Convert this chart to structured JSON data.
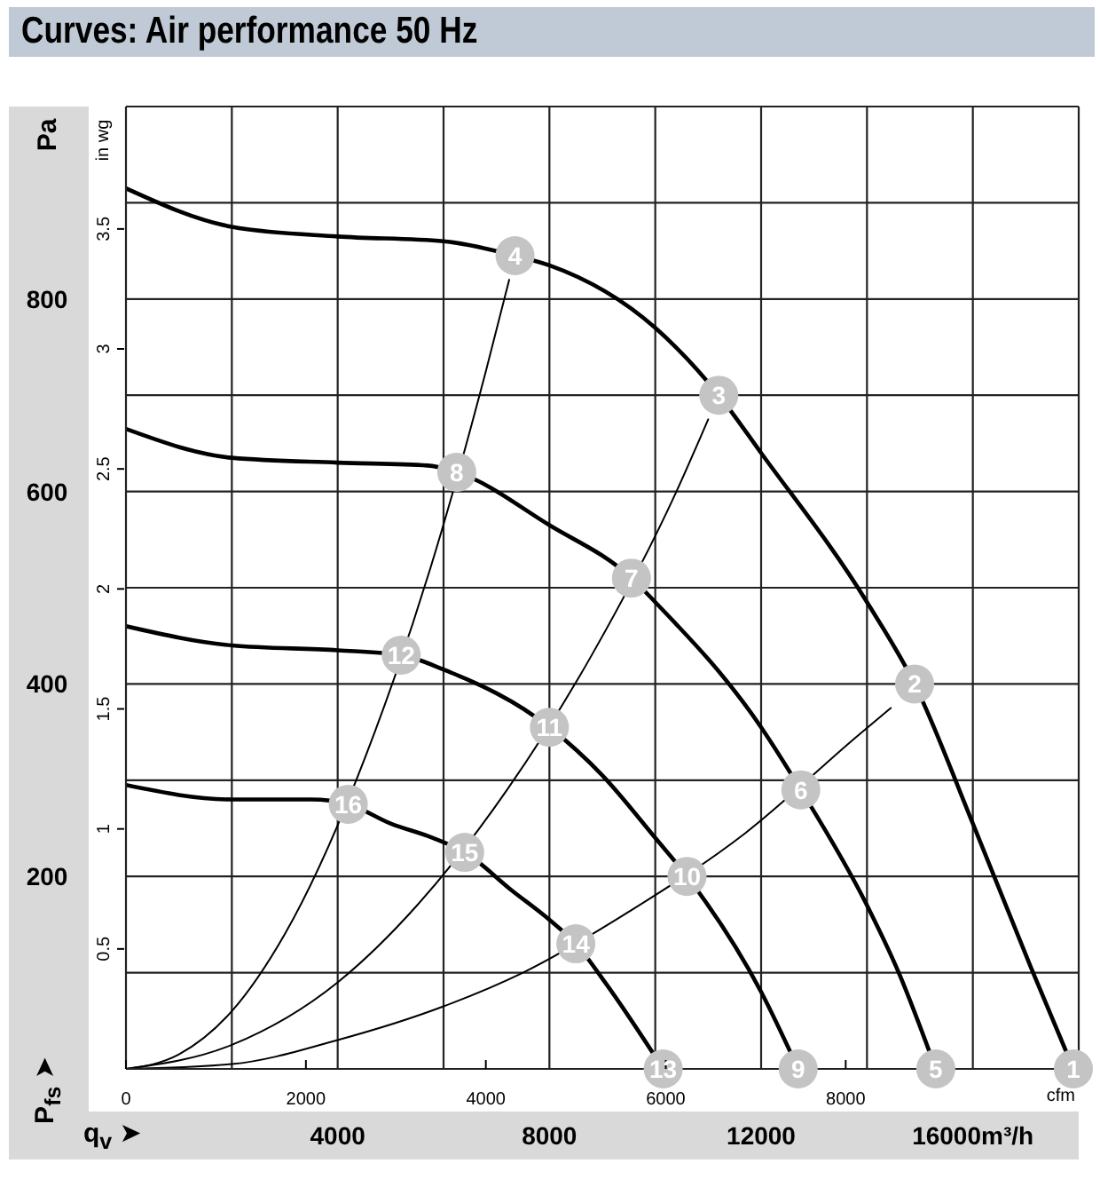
{
  "chart_data": {
    "type": "line",
    "title": "Curves: Air performance 50 Hz",
    "xlabel": "q$_{v}$ ➤",
    "ylabel": "P$_{fs}$ ➤",
    "y2label": "in wg",
    "x2label": "cfm",
    "annotations": [
      "Pa",
      {
        "text": "1",
        "x": 17900,
        "y": 0
      },
      {
        "text": "2",
        "x": 14900,
        "y": 400
      },
      {
        "text": "3",
        "x": 11200,
        "y": 700
      },
      {
        "text": "4",
        "x": 7350,
        "y": 845
      },
      {
        "text": "5",
        "x": 15300,
        "y": 0
      },
      {
        "text": "6",
        "x": 12750,
        "y": 290
      },
      {
        "text": "7",
        "x": 9550,
        "y": 510
      },
      {
        "text": "8",
        "x": 6250,
        "y": 620
      },
      {
        "text": "9",
        "x": 12700,
        "y": 0
      },
      {
        "text": "10",
        "x": 10600,
        "y": 200
      },
      {
        "text": "11",
        "x": 8000,
        "y": 355
      },
      {
        "text": "12",
        "x": 5200,
        "y": 430
      },
      {
        "text": "13",
        "x": 10150,
        "y": 0
      },
      {
        "text": "14",
        "x": 8500,
        "y": 130
      },
      {
        "text": "15",
        "x": 6400,
        "y": 225
      },
      {
        "text": "16",
        "x": 4200,
        "y": 275
      }
    ],
    "series": [
      {
        "color": "#000000",
        "x": [
          0,
          2000,
          4000,
          6000,
          7350,
          8000,
          10000,
          11200,
          12000,
          14000,
          14900,
          16000,
          17100,
          17900
        ],
        "values": [
          915,
          875,
          865,
          860,
          845,
          835,
          770,
          700,
          640,
          485,
          400,
          255,
          105,
          0
        ]
      },
      {
        "color": "#000000",
        "x": [
          0,
          2000,
          4000,
          5700,
          6250,
          8000,
          9550,
          10000,
          12000,
          12750,
          14000,
          14600,
          15300
        ],
        "values": [
          665,
          635,
          630,
          627,
          620,
          565,
          510,
          485,
          355,
          290,
          170,
          100,
          0
        ]
      },
      {
        "color": "#000000",
        "x": [
          0,
          2000,
          4000,
          5200,
          6000,
          8000,
          9000,
          10000,
          10600,
          12000,
          12700
        ],
        "values": [
          460,
          440,
          435,
          430,
          415,
          355,
          305,
          240,
          200,
          80,
          0
        ]
      },
      {
        "color": "#000000",
        "x": [
          0,
          2000,
          3500,
          4200,
          5000,
          5800,
          6400,
          7300,
          8000,
          8500,
          9050,
          10150
        ],
        "values": [
          295,
          280,
          280,
          275,
          255,
          240,
          225,
          185,
          155,
          130,
          90,
          0
        ]
      },
      {
        "color": "#000000",
        "x": [
          0,
          1000,
          2000,
          3000,
          4700,
          5750,
          6800,
          7240
        ],
        "values": [
          0,
          15,
          60,
          140,
          350,
          520,
          725,
          820
        ]
      },
      {
        "color": "#000000",
        "x": [
          0,
          2000,
          4000,
          5500,
          7200,
          8800,
          10400,
          11000
        ],
        "values": [
          0,
          25,
          90,
          170,
          290,
          430,
          600,
          675
        ]
      },
      {
        "color": "#000000",
        "x": [
          0,
          2000,
          4000,
          6000,
          7500,
          9550,
          11700,
          13800,
          14450
        ],
        "values": [
          0,
          5,
          30,
          65,
          100,
          165,
          245,
          345,
          375
        ]
      }
    ],
    "xlim": [
      0,
      18000
    ],
    "xticks": [
      {
        "value": 0,
        "label": null
      },
      {
        "value": 2000,
        "label": null
      },
      4000,
      {
        "value": 6000,
        "label": null
      },
      8000,
      {
        "value": 10000,
        "label": null
      },
      12000,
      {
        "value": 14000,
        "label": null
      },
      {
        "value": 16000,
        "label": "16000m³/h"
      },
      {
        "value": 18000,
        "label": null
      }
    ],
    "x2lim": [
      0,
      10590
    ],
    "x2ticks": [
      0,
      2000,
      4000,
      6000,
      8000
    ],
    "ylim": [
      0,
      1000
    ],
    "yticks": [
      {
        "value": 0,
        "label": null
      },
      {
        "value": 100,
        "label": null
      },
      200,
      {
        "value": 300,
        "label": null
      },
      400,
      {
        "value": 500,
        "label": null
      },
      600,
      {
        "value": 700,
        "label": null
      },
      800,
      {
        "value": 900,
        "label": null
      },
      {
        "value": 1000,
        "label": null
      }
    ],
    "y2lim": [
      0,
      4.01
    ],
    "y2ticks": [
      0.5,
      1,
      1.5,
      2,
      2.5,
      3,
      3.5
    ],
    "grid": true,
    "marker": "none",
    "line_style": "solid"
  }
}
